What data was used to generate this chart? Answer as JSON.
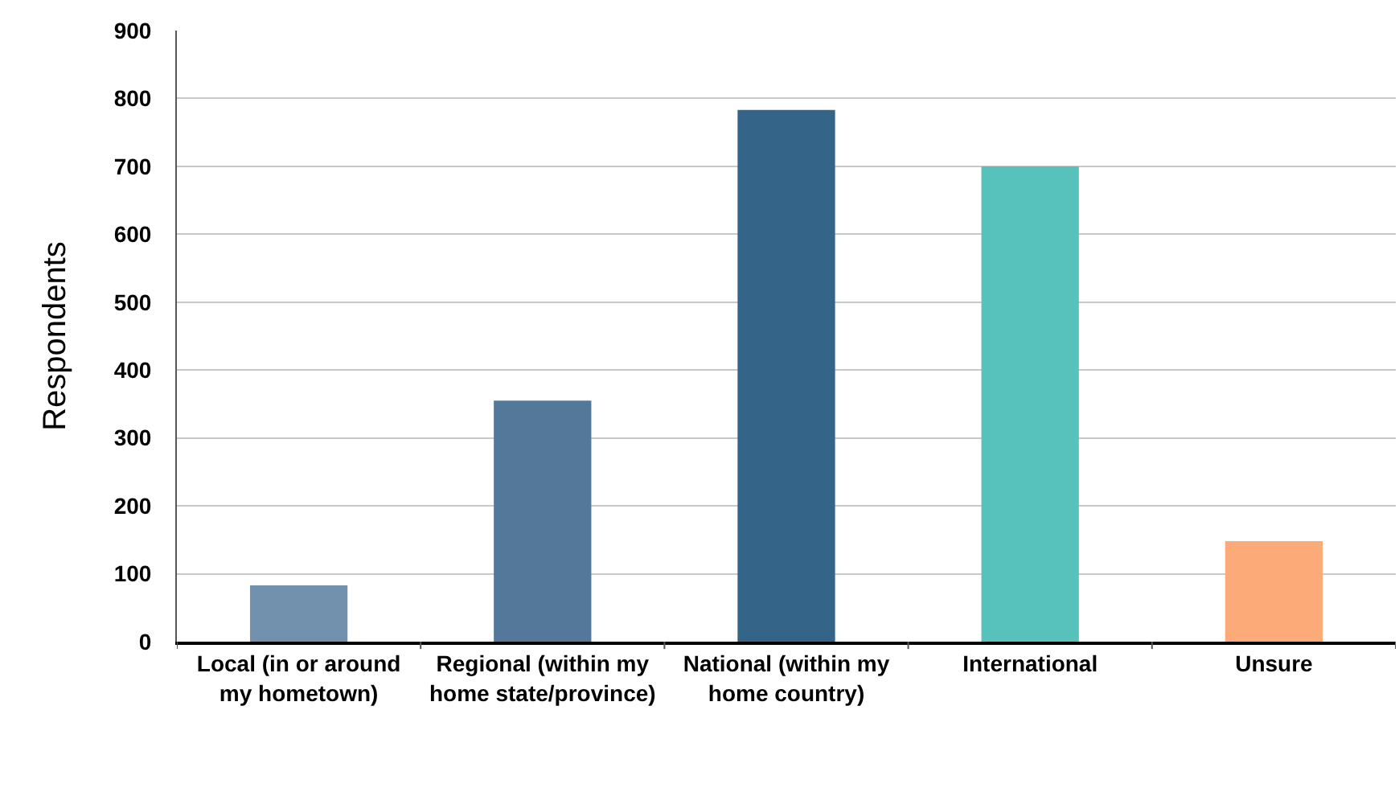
{
  "chart_data": {
    "type": "bar",
    "ylabel": "Respondents",
    "categories": [
      "Local (in or around my hometown)",
      "Regional (within my home state/province)",
      "National (within my home country)",
      "International",
      "Unsure"
    ],
    "values": [
      83,
      355,
      783,
      700,
      148
    ],
    "colors": [
      "#7191ad",
      "#537899",
      "#356489",
      "#57c1bc",
      "#fcaa78"
    ],
    "ylim": [
      0,
      900
    ],
    "yticks": [
      0,
      100,
      200,
      300,
      400,
      500,
      600,
      700,
      800,
      900
    ],
    "grid": "y"
  }
}
